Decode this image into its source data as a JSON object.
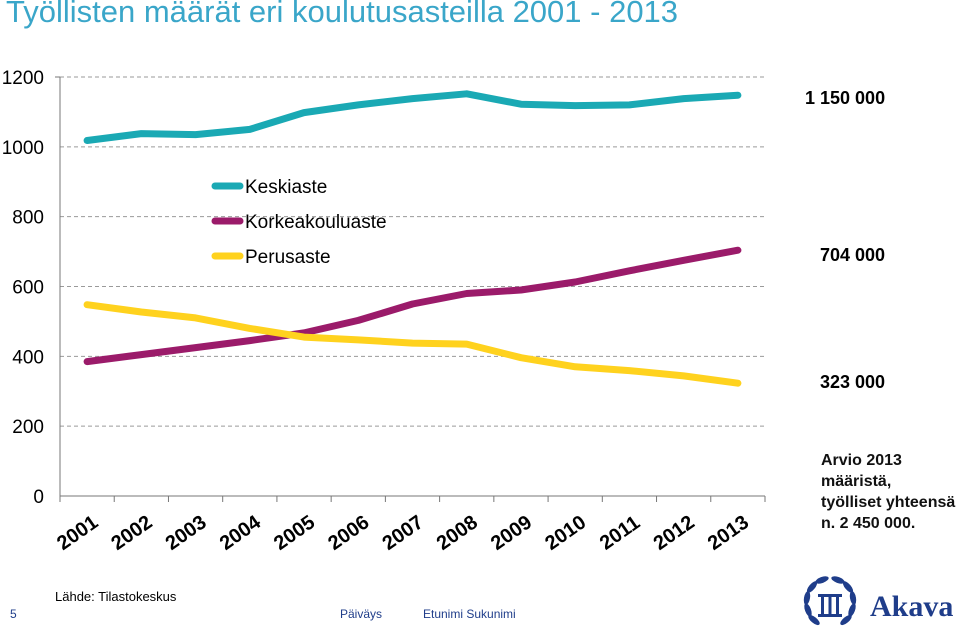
{
  "title": "Työllisten määrät eri koulutusasteilla 2001 - 2013",
  "side_labels": {
    "keskiaste": "1 150 000",
    "korkeakouluaste": "704 000",
    "perusaste": "323 000"
  },
  "note": "Arvio 2013 määristä, työlliset yhteensä n. 2 450 000.",
  "source": "Lähde: Tilastokeskus",
  "footer": {
    "page_number": "5",
    "date": "Päiväys",
    "author": "Etunimi Sukunimi"
  },
  "logo": {
    "text": "Akava",
    "icon": "laurel-wreath-icon",
    "color": "#1f3d8a"
  },
  "chart_data": {
    "type": "line",
    "title": "",
    "xlabel": "",
    "ylabel": "",
    "x": [
      "2001",
      "2002",
      "2003",
      "2004",
      "2005",
      "2006",
      "2007",
      "2008",
      "2009",
      "2010",
      "2011",
      "2012",
      "2013"
    ],
    "ylim": [
      0,
      1200
    ],
    "yticks": [
      "0",
      "200",
      "400",
      "600",
      "800",
      "1000",
      "1200"
    ],
    "grid": "horizontal dashed",
    "legend_position": "top-left inside",
    "series": [
      {
        "name": "Keskiaste",
        "color": "#1aa9b4",
        "values": [
          1018,
          1038,
          1035,
          1050,
          1098,
          1120,
          1138,
          1152,
          1122,
          1118,
          1120,
          1138,
          1148
        ]
      },
      {
        "name": "Korkeakouluaste",
        "color": "#9b1b6a",
        "values": [
          385,
          405,
          425,
          445,
          467,
          503,
          550,
          580,
          590,
          613,
          645,
          675,
          704
        ]
      },
      {
        "name": "Perusaste",
        "color": "#ffd21e",
        "values": [
          548,
          527,
          510,
          480,
          455,
          447,
          438,
          435,
          396,
          370,
          359,
          344,
          323
        ]
      }
    ]
  }
}
